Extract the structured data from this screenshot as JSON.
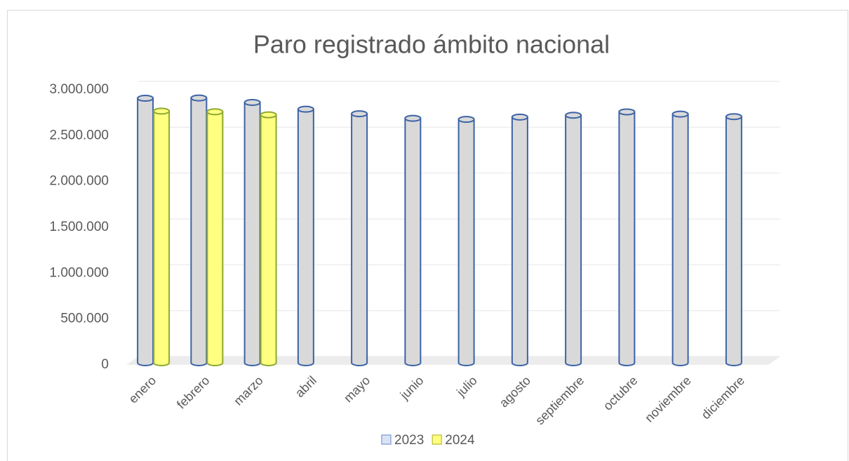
{
  "chart_data": {
    "type": "cylinder",
    "title": "Paro registrado ámbito nacional",
    "categories": [
      "enero",
      "febrero",
      "marzo",
      "abril",
      "mayo",
      "junio",
      "julio",
      "agosto",
      "septiembre",
      "octubre",
      "noviembre",
      "diciembre"
    ],
    "series": [
      {
        "name": "2023",
        "color": "#3c63a6",
        "fill": "#d9d9d9",
        "legend_fill": "#dae3f3",
        "legend_stroke": "#8faadc",
        "values": [
          2908397,
          2911015,
          2862260,
          2788370,
          2739110,
          2688842,
          2677874,
          2702700,
          2722468,
          2759404,
          2734831,
          2707456
        ]
      },
      {
        "name": "2024",
        "color": "#8ea832",
        "fill": "#ffff80",
        "legend_fill": "#ffff80",
        "legend_stroke": "#c9c94a",
        "values": [
          2767860,
          2760408,
          2727003,
          null,
          null,
          null,
          null,
          null,
          null,
          null,
          null,
          null
        ]
      }
    ],
    "ylim": [
      0,
      3000000
    ],
    "yticks": [
      0,
      {
        "value": 500000,
        "label": "500.000"
      },
      {
        "value": 1000000,
        "label": "1.000.000"
      },
      {
        "value": 1500000,
        "label": "1.500.000"
      },
      {
        "value": 2000000,
        "label": "2.000.000"
      },
      {
        "value": 2500000,
        "label": "2.500.000"
      },
      {
        "value": 3000000,
        "label": "3.000.000"
      }
    ],
    "grid": true,
    "legend": "bottom"
  }
}
